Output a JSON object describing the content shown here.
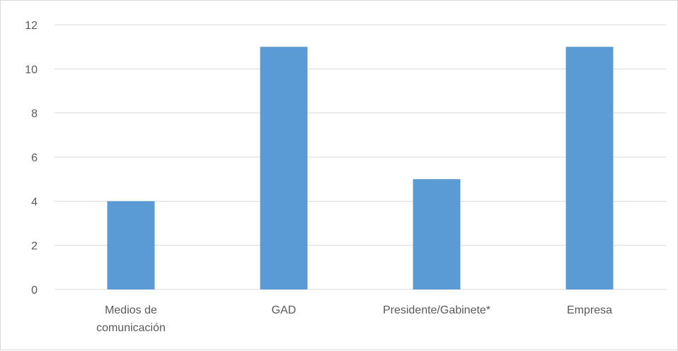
{
  "chart_data": {
    "type": "bar",
    "categories": [
      "Medios de comunicación",
      "GAD",
      "Presidente/Gabinete*",
      "Empresa"
    ],
    "category_lines": [
      [
        "Medios de",
        "comunicación"
      ],
      [
        "GAD"
      ],
      [
        "Presidente/Gabinete*"
      ],
      [
        "Empresa"
      ]
    ],
    "values": [
      4,
      11,
      5,
      11
    ],
    "ylim": [
      0,
      12
    ],
    "yticks": [
      0,
      2,
      4,
      6,
      8,
      10,
      12
    ],
    "grid": true,
    "legend": "none",
    "bar_color": "#5b9bd5",
    "grid_color": "#d9d9d9",
    "text_color": "#595959"
  }
}
